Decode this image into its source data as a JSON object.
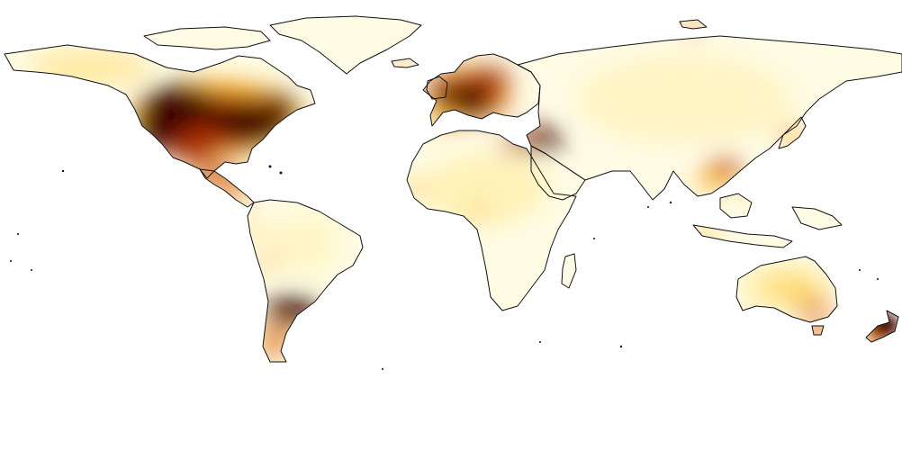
{
  "map": {
    "type": "choropleth-density",
    "projection": "equirectangular",
    "colormap": "afmhot_r",
    "palette": {
      "ocean": "#ffffff",
      "low": "#fffde8",
      "mid": "#ffd24a",
      "high": "#e06a10",
      "peak": "#3a0000",
      "coastline": "#111111"
    },
    "hotspots": [
      {
        "region": "eastern-united-states",
        "level": "peak"
      },
      {
        "region": "western-united-states",
        "level": "peak"
      },
      {
        "region": "mexico",
        "level": "high"
      },
      {
        "region": "central-america",
        "level": "high"
      },
      {
        "region": "western-europe",
        "level": "peak"
      },
      {
        "region": "eastern-mediterranean",
        "level": "peak"
      },
      {
        "region": "eastern-china",
        "level": "high"
      },
      {
        "region": "southern-south-america",
        "level": "peak"
      },
      {
        "region": "new-zealand",
        "level": "high"
      },
      {
        "region": "southeast-australia",
        "level": "high"
      },
      {
        "region": "japan",
        "level": "mid"
      }
    ]
  }
}
